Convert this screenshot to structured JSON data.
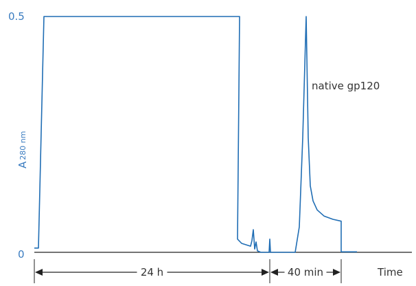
{
  "chart_data": {
    "type": "line",
    "title": "",
    "xlabel": "Time",
    "ylabel": "A",
    "ylabel_subscript": "280 nm",
    "xlim": [
      0,
      550
    ],
    "ylim": [
      0,
      0.5
    ],
    "yticks": [
      "0",
      "0.5"
    ],
    "grid": false,
    "colors": {
      "trace": "#1f6db4",
      "tick_labels": "#3a7cc0",
      "axis": "#222222"
    },
    "series": [
      {
        "x": [
          0,
          6,
          14,
          299,
          296,
          302,
          315,
          317,
          319,
          321,
          323,
          325,
          330,
          342,
          343,
          344,
          380,
          386,
          391,
          396,
          399,
          402,
          406,
          412,
          422,
          435,
          447,
          447,
          470
        ],
        "y": [
          0.009,
          0.009,
          0.5,
          0.5,
          0.028,
          0.019,
          0.013,
          0.025,
          0.048,
          0.007,
          0.022,
          0.003,
          0,
          0,
          0.028,
          0,
          0,
          0.054,
          0.243,
          0.5,
          0.243,
          0.141,
          0.109,
          0.09,
          0.077,
          0.07,
          0.066,
          0.001,
          0.001
        ]
      }
    ],
    "annotations": [
      {
        "text": "native gp120",
        "x": 396,
        "y": 0.35
      },
      {
        "text": "24 h",
        "from": 0,
        "to": 343
      },
      {
        "text": "40 min",
        "from": 343,
        "to": 447
      }
    ]
  }
}
